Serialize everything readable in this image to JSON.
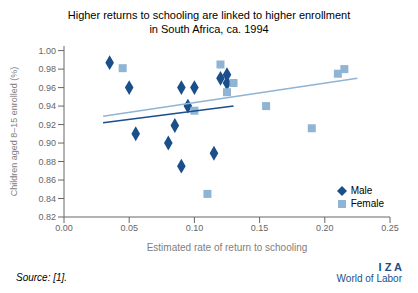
{
  "chart_data": {
    "type": "scatter",
    "title": "Higher returns to schooling are linked to higher enrollment\nin South Africa, ca. 1994",
    "xlabel": "Estimated rate of return to schooling",
    "ylabel": "Children aged 8–15 enrolled (%)",
    "xlim": [
      0.0,
      0.25
    ],
    "ylim": [
      0.82,
      1.005
    ],
    "xticks": [
      {
        "value": 0.0,
        "label": "0.00"
      },
      0.05,
      {
        "value": 0.1,
        "label": "0.10"
      },
      0.15,
      {
        "value": 0.2,
        "label": "0.20"
      },
      0.25
    ],
    "yticks": [
      0.82,
      0.84,
      0.86,
      0.88,
      {
        "value": 0.9,
        "label": "0.90"
      },
      0.92,
      0.94,
      0.96,
      0.98,
      {
        "value": 1.0,
        "label": "1.00"
      }
    ],
    "series": [
      {
        "name": "Male",
        "type": "scatter",
        "marker": "diamond",
        "color": "#1a4f8a",
        "x": [
          0.035,
          0.05,
          0.055,
          0.08,
          0.085,
          0.09,
          0.09,
          0.095,
          0.1,
          0.115,
          0.12,
          0.125,
          0.125
        ],
        "values": [
          0.987,
          0.96,
          0.91,
          0.9,
          0.919,
          0.96,
          0.875,
          0.94,
          0.96,
          0.889,
          0.97,
          0.974,
          0.965
        ]
      },
      {
        "name": "Female",
        "type": "scatter",
        "marker": "square",
        "color": "#8fb4d4",
        "x": [
          0.045,
          0.1,
          0.11,
          0.12,
          0.125,
          0.13,
          0.155,
          0.19,
          0.21,
          0.215
        ],
        "values": [
          0.981,
          0.935,
          0.845,
          0.985,
          0.955,
          0.965,
          0.94,
          0.916,
          0.975,
          0.98
        ]
      },
      {
        "type": "line",
        "color": "#1a4f8a",
        "x": [
          0.03,
          0.13
        ],
        "values": [
          0.922,
          0.94
        ]
      },
      {
        "type": "line",
        "color": "#8fb4d4",
        "x": [
          0.03,
          0.225
        ],
        "values": [
          0.929,
          0.97
        ]
      }
    ],
    "legend": "lower right",
    "grid": false,
    "annotations": [
      {
        "text": "Source: [1]."
      },
      {
        "text": "I Z A",
        "color": "#1a4f8a"
      },
      {
        "text": "World of Labor",
        "color": "#1a4f8a"
      }
    ]
  }
}
